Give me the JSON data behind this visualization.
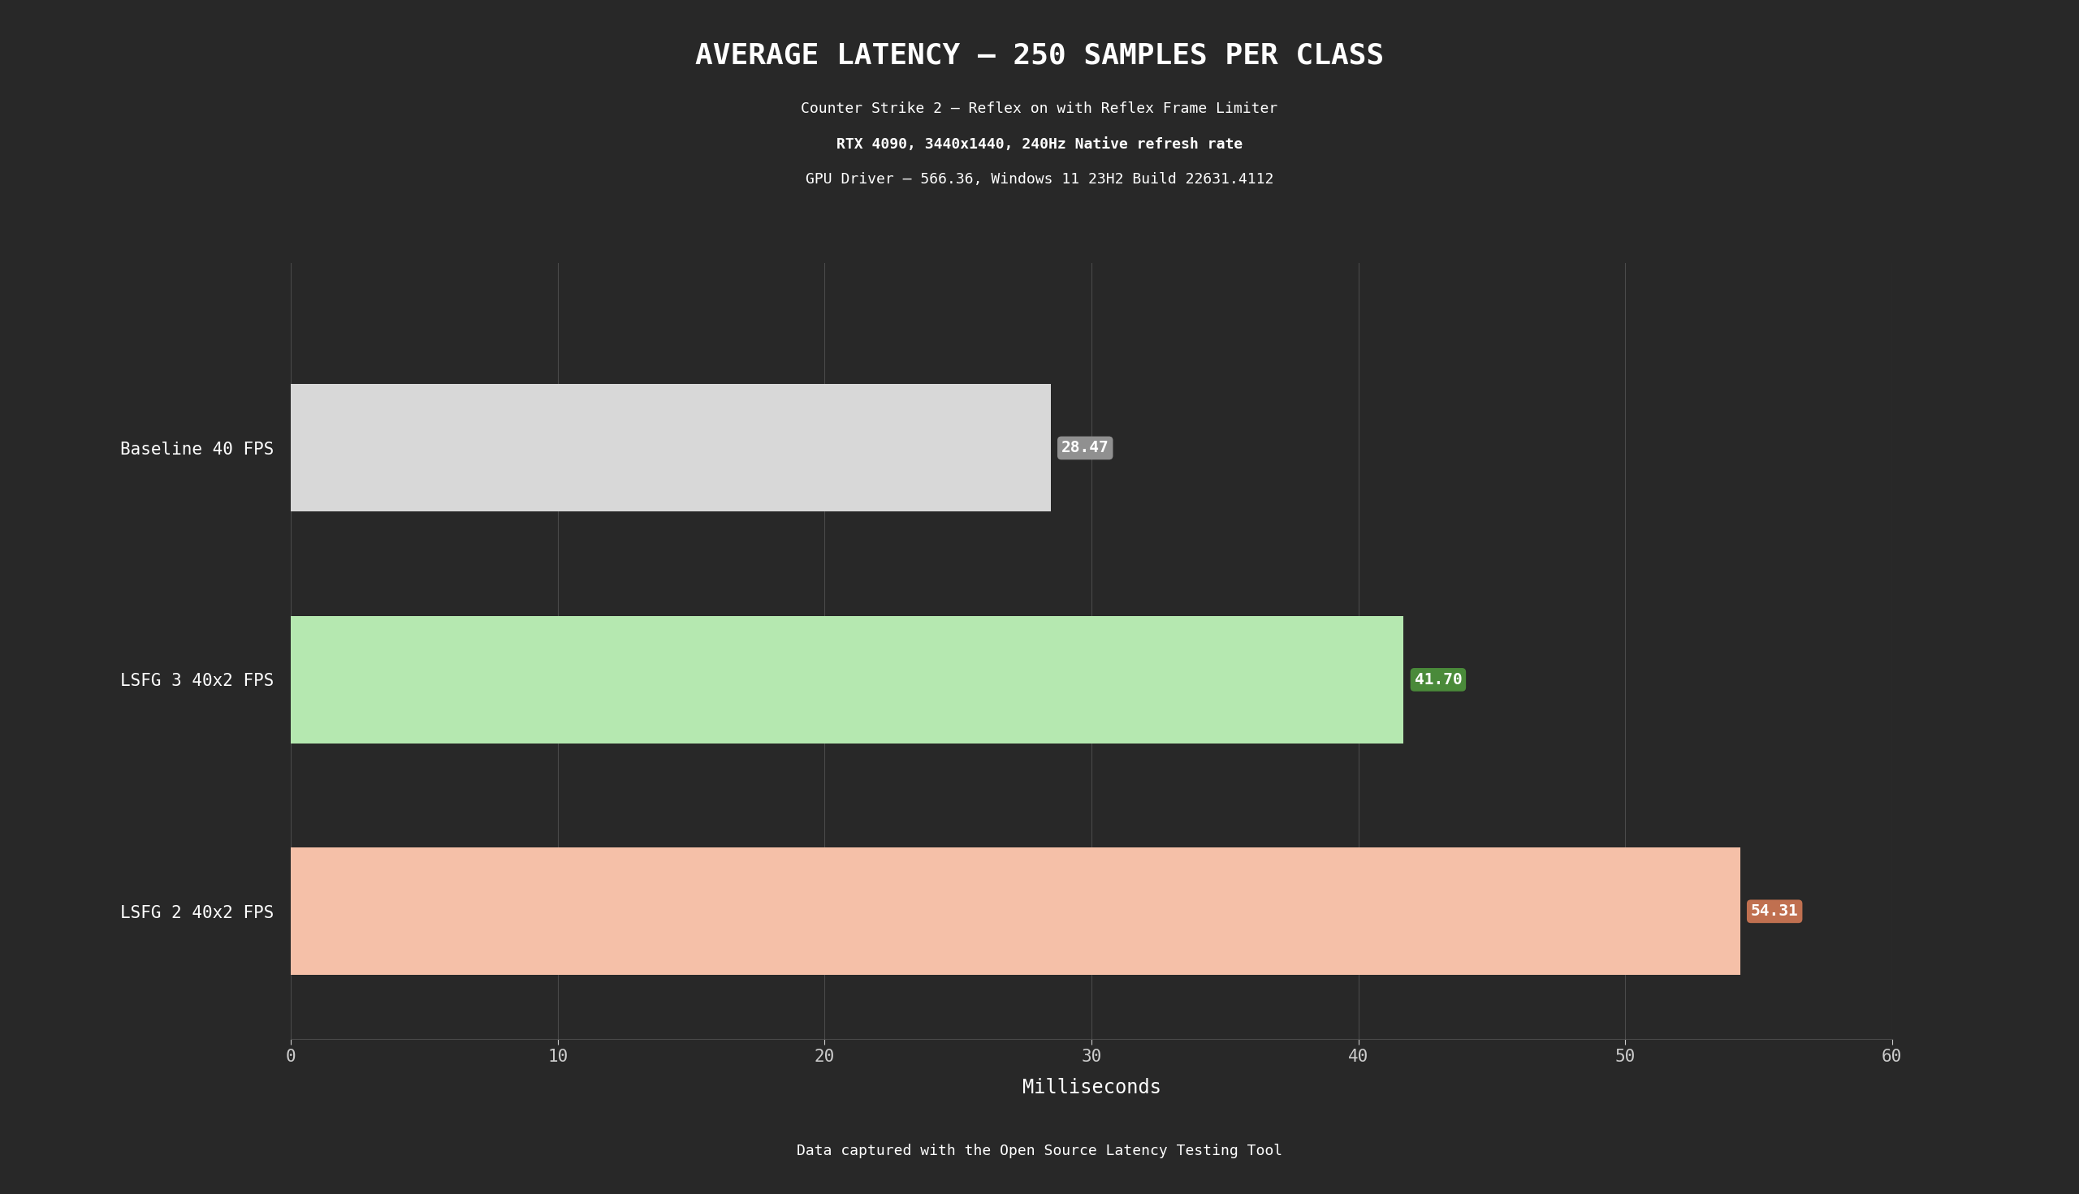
{
  "title": "AVERAGE LATENCY – 250 SAMPLES PER CLASS",
  "subtitle1": "Counter Strike 2 – Reflex on with Reflex Frame Limiter",
  "subtitle2": "RTX 4090, 3440x1440, 240Hz Native refresh rate",
  "subtitle3": "GPU Driver – 566.36, Windows 11 23H2 Build 22631.4112",
  "footer": "Data captured with the Open Source Latency Testing Tool",
  "categories": [
    "Baseline 40 FPS",
    "LSFG 3 40x2 FPS",
    "LSFG 2 40x2 FPS"
  ],
  "values": [
    28.47,
    41.7,
    54.31
  ],
  "bar_colors": [
    "#d8d8d8",
    "#b5e8b0",
    "#f5c0a8"
  ],
  "value_bg_colors": [
    "#909090",
    "#4a8a3a",
    "#c07050"
  ],
  "value_text_color": "#ffffff",
  "xlim": [
    0,
    60
  ],
  "xticks": [
    0,
    10,
    20,
    30,
    40,
    50,
    60
  ],
  "xlabel": "Milliseconds",
  "background_color": "#282828",
  "plot_bg_color": "#282828",
  "text_color": "#ffffff",
  "grid_color": "#4a4a4a",
  "tick_label_color": "#cccccc",
  "title_fontsize": 26,
  "subtitle_fontsize": 13,
  "label_fontsize": 15,
  "xlabel_fontsize": 17,
  "footer_fontsize": 13,
  "value_fontsize": 14,
  "bar_height": 0.55
}
